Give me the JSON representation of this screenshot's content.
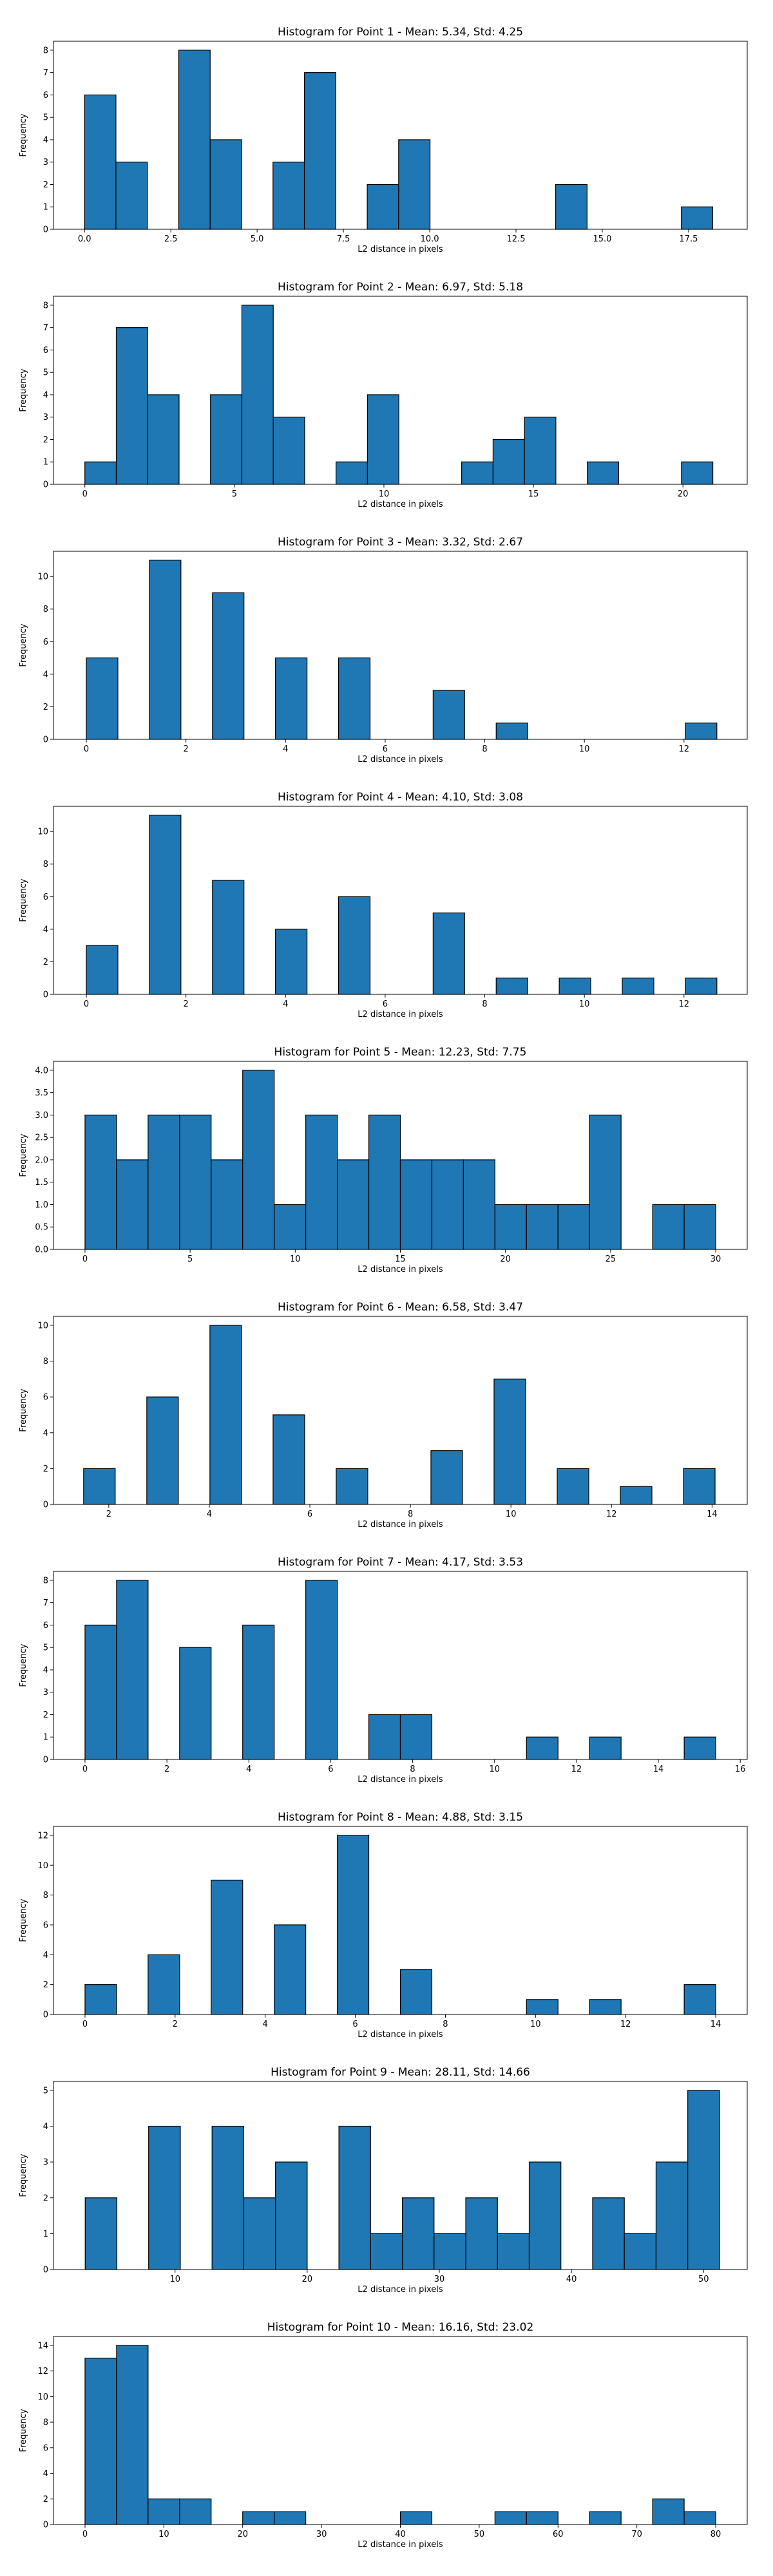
{
  "chart_data": [
    {
      "type": "bar",
      "title": "Histogram for Point 1 - Mean: 5.34, Std: 4.25",
      "xlabel": "L2 distance in pixels",
      "ylabel": "Frequency",
      "xlim": [
        -0.9,
        19.2
      ],
      "ylim": [
        0,
        8.4
      ],
      "xticks": [
        0,
        2.5,
        5,
        7.5,
        10,
        12.5,
        15,
        17.5
      ],
      "xtick_labels": [
        "0.0",
        "2.5",
        "5.0",
        "7.5",
        "10.0",
        "12.5",
        "15.0",
        "17.5"
      ],
      "yticks": [
        0,
        1,
        2,
        3,
        4,
        5,
        6,
        7,
        8
      ],
      "ytick_labels": [
        "0",
        "1",
        "2",
        "3",
        "4",
        "5",
        "6",
        "7",
        "8"
      ],
      "bin_width": 0.91,
      "bin_starts": [
        0,
        0.91,
        2.73,
        3.64,
        5.46,
        6.37,
        8.19,
        9.1,
        13.65,
        17.29
      ],
      "values": [
        6,
        3,
        8,
        4,
        3,
        7,
        2,
        4,
        2,
        1
      ]
    },
    {
      "type": "bar",
      "title": "Histogram for Point 2 - Mean: 6.97, Std: 5.18",
      "xlabel": "L2 distance in pixels",
      "ylabel": "Frequency",
      "xlim": [
        -1.05,
        22.15
      ],
      "ylim": [
        0,
        8.4
      ],
      "xticks": [
        0,
        5,
        10,
        15,
        20
      ],
      "xtick_labels": [
        "0",
        "5",
        "10",
        "15",
        "20"
      ],
      "yticks": [
        0,
        1,
        2,
        3,
        4,
        5,
        6,
        7,
        8
      ],
      "ytick_labels": [
        "0",
        "1",
        "2",
        "3",
        "4",
        "5",
        "6",
        "7",
        "8"
      ],
      "bin_width": 1.05,
      "bin_starts": [
        0,
        1.05,
        2.1,
        4.2,
        5.25,
        6.3,
        8.4,
        9.45,
        12.6,
        13.65,
        14.7,
        16.8,
        19.95
      ],
      "values": [
        1,
        7,
        4,
        4,
        8,
        3,
        1,
        4,
        1,
        2,
        3,
        1,
        1
      ]
    },
    {
      "type": "bar",
      "title": "Histogram for Point 3 - Mean: 3.32, Std: 2.67",
      "xlabel": "L2 distance in pixels",
      "ylabel": "Frequency",
      "xlim": [
        -0.66,
        13.27
      ],
      "ylim": [
        0,
        11.55
      ],
      "xticks": [
        0,
        2,
        4,
        6,
        8,
        10,
        12
      ],
      "xtick_labels": [
        "0",
        "2",
        "4",
        "6",
        "8",
        "10",
        "12"
      ],
      "yticks": [
        0,
        2,
        4,
        6,
        8,
        10
      ],
      "ytick_labels": [
        "0",
        "2",
        "4",
        "6",
        "8",
        "10"
      ],
      "bin_width": 0.633,
      "bin_starts": [
        0,
        1.266,
        2.532,
        3.798,
        5.064,
        6.963,
        8.229,
        12.027
      ],
      "values": [
        5,
        11,
        9,
        5,
        5,
        3,
        1,
        1
      ]
    },
    {
      "type": "bar",
      "title": "Histogram for Point 4 - Mean: 4.10, Std: 3.08",
      "xlabel": "L2 distance in pixels",
      "ylabel": "Frequency",
      "xlim": [
        -0.66,
        13.27
      ],
      "ylim": [
        0,
        11.55
      ],
      "xticks": [
        0,
        2,
        4,
        6,
        8,
        10,
        12
      ],
      "xtick_labels": [
        "0",
        "2",
        "4",
        "6",
        "8",
        "10",
        "12"
      ],
      "yticks": [
        0,
        2,
        4,
        6,
        8,
        10
      ],
      "ytick_labels": [
        "0",
        "2",
        "4",
        "6",
        "8",
        "10"
      ],
      "bin_width": 0.633,
      "bin_starts": [
        0,
        1.266,
        2.532,
        3.798,
        5.064,
        6.963,
        8.229,
        9.495,
        10.761,
        12.027
      ],
      "values": [
        3,
        11,
        7,
        4,
        6,
        5,
        1,
        1,
        1,
        1
      ]
    },
    {
      "type": "bar",
      "title": "Histogram for Point 5 - Mean: 12.23, Std: 7.75",
      "xlabel": "L2 distance in pixels",
      "ylabel": "Frequency",
      "xlim": [
        -1.5,
        31.5
      ],
      "ylim": [
        0,
        4.2
      ],
      "xticks": [
        0,
        5,
        10,
        15,
        20,
        25,
        30
      ],
      "xtick_labels": [
        "0",
        "5",
        "10",
        "15",
        "20",
        "25",
        "30"
      ],
      "yticks": [
        0,
        0.5,
        1,
        1.5,
        2,
        2.5,
        3,
        3.5,
        4
      ],
      "ytick_labels": [
        "0.0",
        "0.5",
        "1.0",
        "1.5",
        "2.0",
        "2.5",
        "3.0",
        "3.5",
        "4.0"
      ],
      "bin_width": 1.5,
      "bin_starts": [
        0,
        1.5,
        3,
        4.5,
        6,
        7.5,
        9,
        10.5,
        12,
        13.5,
        15,
        16.5,
        18,
        19.5,
        21,
        22.5,
        24,
        27,
        28.5
      ],
      "values": [
        3,
        2,
        3,
        3,
        2,
        4,
        1,
        3,
        2,
        3,
        2,
        2,
        2,
        1,
        1,
        1,
        3,
        1,
        1
      ]
    },
    {
      "type": "bar",
      "title": "Histogram for Point 6 - Mean: 6.58, Std: 3.47",
      "xlabel": "L2 distance in pixels",
      "ylabel": "Frequency",
      "xlim": [
        0.9,
        14.7
      ],
      "ylim": [
        0,
        10.5
      ],
      "xticks": [
        2,
        4,
        6,
        8,
        10,
        12,
        14
      ],
      "xtick_labels": [
        "2",
        "4",
        "6",
        "8",
        "10",
        "12",
        "14"
      ],
      "yticks": [
        0,
        2,
        4,
        6,
        8,
        10
      ],
      "ytick_labels": [
        "0",
        "2",
        "4",
        "6",
        "8",
        "10"
      ],
      "bin_width": 0.628,
      "bin_starts": [
        1.5,
        2.756,
        4.012,
        5.268,
        6.524,
        8.408,
        9.664,
        10.92,
        12.176,
        13.432
      ],
      "values": [
        2,
        6,
        10,
        5,
        2,
        3,
        7,
        2,
        1,
        2
      ]
    },
    {
      "type": "bar",
      "title": "Histogram for Point 7 - Mean: 4.17, Std: 3.53",
      "xlabel": "L2 distance in pixels",
      "ylabel": "Frequency",
      "xlim": [
        -0.77,
        16.17
      ],
      "ylim": [
        0,
        8.4
      ],
      "xticks": [
        0,
        2,
        4,
        6,
        8,
        10,
        12,
        14,
        16
      ],
      "xtick_labels": [
        "0",
        "2",
        "4",
        "6",
        "8",
        "10",
        "12",
        "14",
        "16"
      ],
      "yticks": [
        0,
        1,
        2,
        3,
        4,
        5,
        6,
        7,
        8
      ],
      "ytick_labels": [
        "0",
        "1",
        "2",
        "3",
        "4",
        "5",
        "6",
        "7",
        "8"
      ],
      "bin_width": 0.77,
      "bin_starts": [
        0,
        0.77,
        2.31,
        3.85,
        5.39,
        6.93,
        7.7,
        10.78,
        12.32,
        14.63
      ],
      "values": [
        6,
        8,
        5,
        6,
        8,
        2,
        2,
        1,
        1,
        1
      ]
    },
    {
      "type": "bar",
      "title": "Histogram for Point 8 - Mean: 4.88, Std: 3.15",
      "xlabel": "L2 distance in pixels",
      "ylabel": "Frequency",
      "xlim": [
        -0.7,
        14.7
      ],
      "ylim": [
        0,
        12.6
      ],
      "xticks": [
        0,
        2,
        4,
        6,
        8,
        10,
        12,
        14
      ],
      "xtick_labels": [
        "0",
        "2",
        "4",
        "6",
        "8",
        "10",
        "12",
        "14"
      ],
      "yticks": [
        0,
        2,
        4,
        6,
        8,
        10,
        12
      ],
      "ytick_labels": [
        "0",
        "2",
        "4",
        "6",
        "8",
        "10",
        "12"
      ],
      "bin_width": 0.7,
      "bin_starts": [
        0,
        1.4,
        2.8,
        4.2,
        5.6,
        7,
        9.8,
        11.2,
        13.3
      ],
      "values": [
        2,
        4,
        9,
        6,
        12,
        3,
        1,
        1,
        2
      ]
    },
    {
      "type": "bar",
      "title": "Histogram for Point 9 - Mean: 28.11, Std: 14.66",
      "xlabel": "L2 distance in pixels",
      "ylabel": "Frequency",
      "xlim": [
        0.8,
        53.3
      ],
      "ylim": [
        0,
        5.25
      ],
      "xticks": [
        10,
        20,
        30,
        40,
        50
      ],
      "xtick_labels": [
        "10",
        "20",
        "30",
        "40",
        "50"
      ],
      "yticks": [
        0,
        1,
        2,
        3,
        4,
        5
      ],
      "ytick_labels": [
        "0",
        "1",
        "2",
        "3",
        "4",
        "5"
      ],
      "bin_width": 2.4,
      "bin_starts": [
        3.2,
        8,
        12.8,
        15.2,
        17.6,
        22.4,
        24.8,
        27.2,
        29.6,
        32,
        34.4,
        36.8,
        41.6,
        44,
        46.4,
        48.8
      ],
      "values": [
        2,
        4,
        4,
        2,
        3,
        4,
        1,
        2,
        1,
        2,
        1,
        3,
        2,
        1,
        3,
        5
      ]
    },
    {
      "type": "bar",
      "title": "Histogram for Point 10 - Mean: 16.16, Std: 23.02",
      "xlabel": "L2 distance in pixels",
      "ylabel": "Frequency",
      "xlim": [
        -4,
        84
      ],
      "ylim": [
        0,
        14.7
      ],
      "xticks": [
        0,
        10,
        20,
        30,
        40,
        50,
        60,
        70,
        80
      ],
      "xtick_labels": [
        "0",
        "10",
        "20",
        "30",
        "40",
        "50",
        "60",
        "70",
        "80"
      ],
      "yticks": [
        0,
        2,
        4,
        6,
        8,
        10,
        12,
        14
      ],
      "ytick_labels": [
        "0",
        "2",
        "4",
        "6",
        "8",
        "10",
        "12",
        "14"
      ],
      "bin_width": 4,
      "bin_starts": [
        0,
        4,
        8,
        12,
        20,
        24,
        40,
        52,
        56,
        64,
        72,
        76
      ],
      "values": [
        13,
        14,
        2,
        2,
        1,
        1,
        1,
        1,
        1,
        1,
        2,
        1
      ]
    }
  ]
}
